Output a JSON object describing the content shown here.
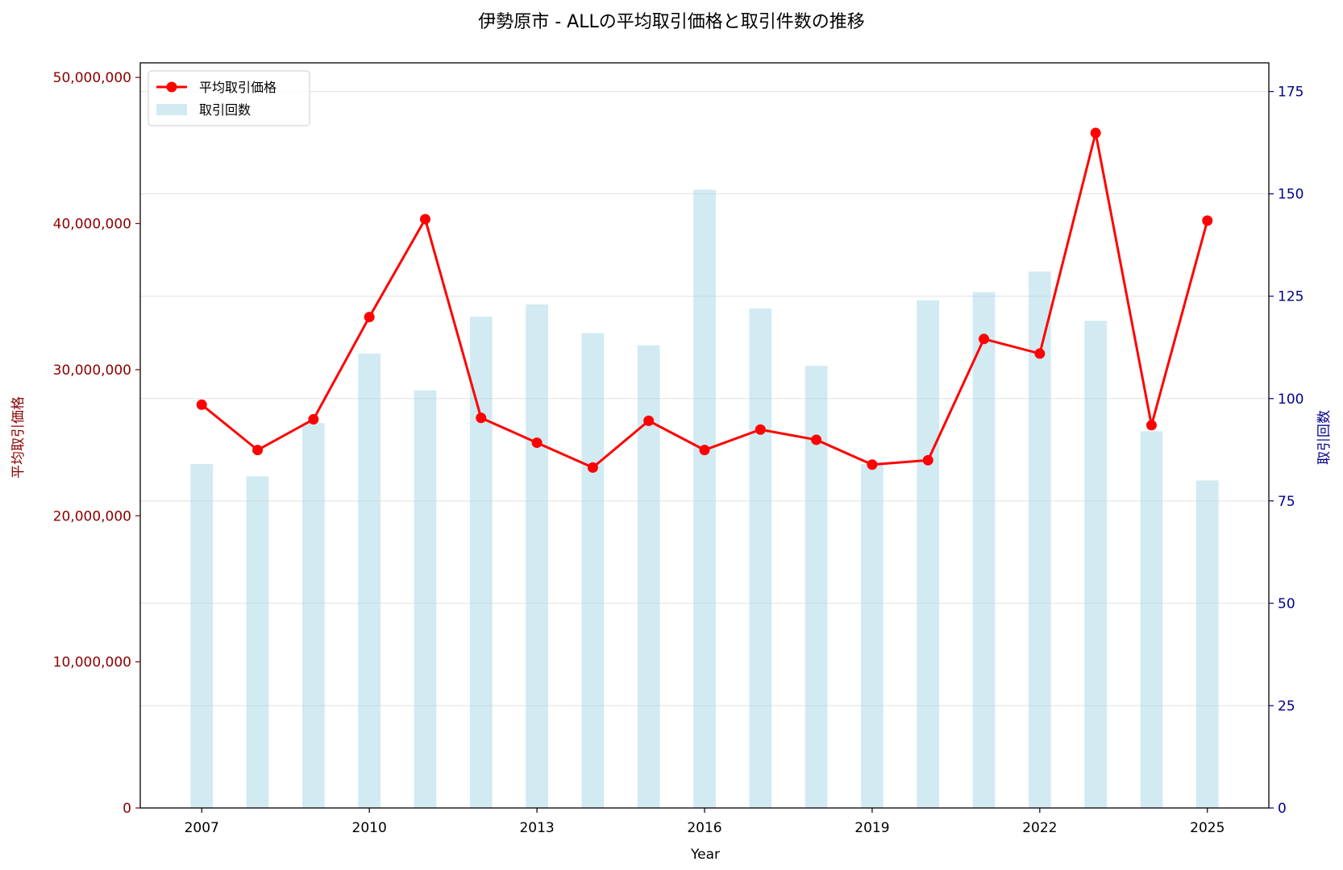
{
  "chart_data": {
    "type": "bar",
    "title": "伊勢原市 - ALLの平均取引価格と取引件数の推移",
    "xlabel": "Year",
    "ylabel_left": "平均取引価格",
    "ylabel_right": "取引回数",
    "x": [
      2007,
      2008,
      2009,
      2010,
      2011,
      2012,
      2013,
      2014,
      2015,
      2016,
      2017,
      2018,
      2019,
      2020,
      2021,
      2022,
      2023,
      2024,
      2025
    ],
    "x_ticks": [
      "2007",
      "2010",
      "2013",
      "2016",
      "2019",
      "2022",
      "2025"
    ],
    "y_left_ticks": [
      "0",
      "10,000,000",
      "20,000,000",
      "30,000,000",
      "40,000,000",
      "50,000,000"
    ],
    "y_right_ticks": [
      "0",
      "25",
      "50",
      "75",
      "100",
      "125",
      "150",
      "175"
    ],
    "ylim_left": [
      0,
      51000000
    ],
    "ylim_right": [
      0,
      182
    ],
    "xlim": [
      2005.9,
      2026.1
    ],
    "series": [
      {
        "name": "平均取引価格",
        "kind": "line",
        "axis": "left",
        "color": "#ff0000",
        "values": [
          27600000,
          24500000,
          26600000,
          33600000,
          40300000,
          26700000,
          25000000,
          23300000,
          26500000,
          24500000,
          25900000,
          25200000,
          23500000,
          23800000,
          32100000,
          31100000,
          46200000,
          26200000,
          40200000
        ]
      },
      {
        "name": "取引回数",
        "kind": "bar",
        "axis": "right",
        "color": "#add8e6",
        "values": [
          84,
          81,
          94,
          111,
          102,
          120,
          123,
          116,
          113,
          151,
          122,
          108,
          84,
          124,
          126,
          131,
          119,
          92,
          80
        ]
      }
    ],
    "grid": true,
    "legend_position": "upper-left",
    "left_axis_color": "#8b0000",
    "right_axis_color": "#00008b"
  }
}
